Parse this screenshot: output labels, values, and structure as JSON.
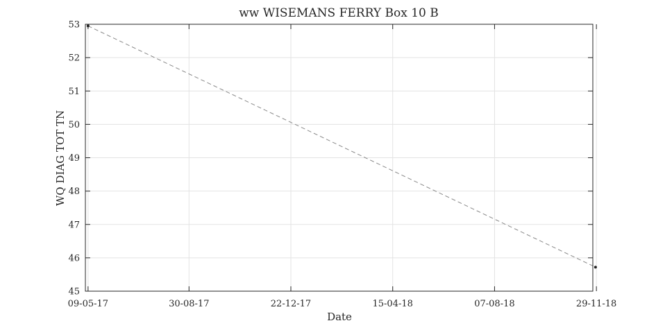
{
  "chart_data": {
    "type": "line",
    "title": "ww WISEMANS FERRY Box 10 B",
    "xlabel": "Date",
    "ylabel": "WQ DIAG TOT TN",
    "x_day_range": [
      -3,
      565
    ],
    "ylim": [
      45,
      53
    ],
    "grid": true,
    "x_ticks": [
      {
        "day": 0,
        "label": "09-05-17"
      },
      {
        "day": 113,
        "label": "30-08-17"
      },
      {
        "day": 227,
        "label": "22-12-17"
      },
      {
        "day": 341,
        "label": "15-04-18"
      },
      {
        "day": 455,
        "label": "07-08-18"
      },
      {
        "day": 569,
        "label": "29-11-18"
      }
    ],
    "y_ticks": [
      45,
      46,
      47,
      48,
      49,
      50,
      51,
      52,
      53
    ],
    "series": [
      {
        "name": "WQ DIAG TOT TN",
        "line_style": "dashed",
        "line_color": "#888888",
        "marker_color": "#222222",
        "points": [
          {
            "day": 0,
            "date": "09-05-17",
            "value": 52.95
          },
          {
            "day": 568,
            "date": "28-11-18",
            "value": 45.72
          }
        ]
      }
    ]
  }
}
